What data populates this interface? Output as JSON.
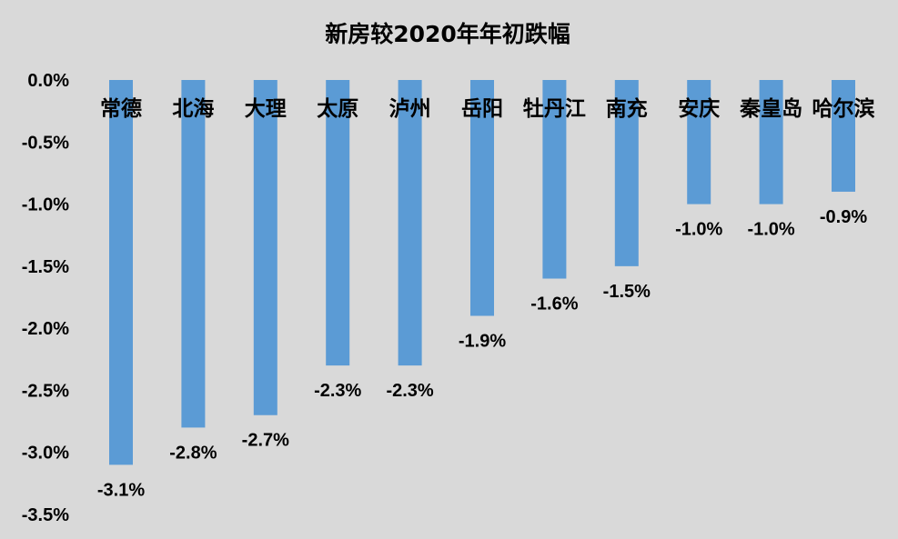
{
  "chart_data": {
    "type": "bar",
    "title": "新房较2020年年初跌幅",
    "xlabel": "",
    "ylabel": "",
    "categories": [
      "常德",
      "北海",
      "大理",
      "太原",
      "泸州",
      "岳阳",
      "牡丹江",
      "南充",
      "安庆",
      "秦皇岛",
      "哈尔滨"
    ],
    "values": [
      -3.1,
      -2.8,
      -2.7,
      -2.3,
      -2.3,
      -1.9,
      -1.6,
      -1.5,
      -1.0,
      -1.0,
      -0.9
    ],
    "value_labels": [
      "-3.1%",
      "-2.8%",
      "-2.7%",
      "-2.3%",
      "-2.3%",
      "-1.9%",
      "-1.6%",
      "-1.5%",
      "-1.0%",
      "-1.0%",
      "-0.9%"
    ],
    "ylim": [
      -3.5,
      0
    ],
    "yticks": [
      0,
      -0.5,
      -1.0,
      -1.5,
      -2.0,
      -2.5,
      -3.0,
      -3.5
    ],
    "ytick_labels": [
      "0.0%",
      "-0.5%",
      "-1.0%",
      "-1.5%",
      "-2.0%",
      "-2.5%",
      "-3.0%",
      "-3.5%"
    ],
    "grid": false,
    "legend": "none",
    "bar_color": "#5b9bd5",
    "background_color": "#d9d9d9"
  }
}
